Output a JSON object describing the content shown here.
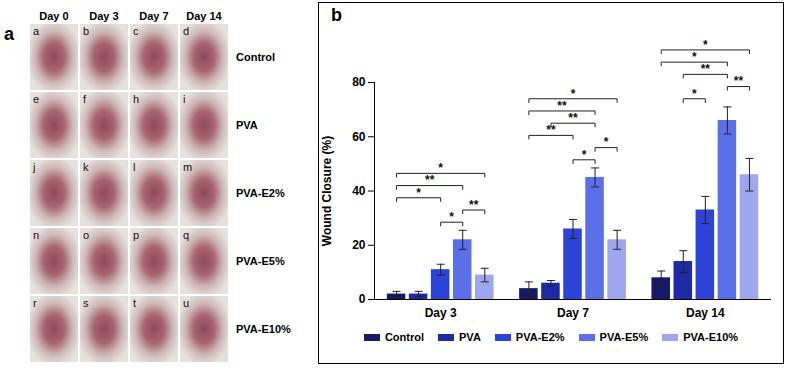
{
  "panel_a": {
    "label": "a",
    "columns": [
      "Day 0",
      "Day 3",
      "Day 7",
      "Day 14"
    ],
    "rows": [
      {
        "name": "Control",
        "cells": [
          "a",
          "b",
          "c",
          "d"
        ]
      },
      {
        "name": "PVA",
        "cells": [
          "e",
          "f",
          "h",
          "i"
        ]
      },
      {
        "name": "PVA-E2%",
        "cells": [
          "j",
          "k",
          "l",
          "m"
        ]
      },
      {
        "name": "PVA-E5%",
        "cells": [
          "n",
          "o",
          "p",
          "q"
        ]
      },
      {
        "name": "PVA-E10%",
        "cells": [
          "r",
          "s",
          "t",
          "u"
        ]
      }
    ]
  },
  "chart_data": {
    "type": "bar",
    "panel_label": "b",
    "y_label": "Wound Closure (%)",
    "categories": [
      "Day 3",
      "Day 7",
      "Day 14"
    ],
    "series": [
      {
        "name": "Control",
        "color": "#141a66",
        "values": [
          2,
          4,
          8
        ],
        "errors": [
          1,
          2.5,
          2.5
        ]
      },
      {
        "name": "PVA",
        "color": "#1c2aa6",
        "values": [
          2,
          6,
          14
        ],
        "errors": [
          1,
          1,
          4
        ]
      },
      {
        "name": "PVA-E2%",
        "color": "#2b43d6",
        "values": [
          11,
          26,
          33
        ],
        "errors": [
          2,
          3.5,
          5
        ]
      },
      {
        "name": "PVA-E5%",
        "color": "#5b6fe8",
        "values": [
          22,
          45,
          66
        ],
        "errors": [
          3.5,
          3.5,
          5
        ]
      },
      {
        "name": "PVA-E10%",
        "color": "#9da6ee",
        "values": [
          9,
          22,
          46
        ],
        "errors": [
          2.5,
          3.5,
          6
        ]
      }
    ],
    "ylim": [
      0,
      80
    ],
    "yticks": [
      0,
      20,
      40,
      60,
      80
    ],
    "grid": false,
    "legend": "bottom",
    "annotations": [
      {
        "category": "Day 3",
        "from": "Control",
        "to": "PVA-E10%",
        "label": "*"
      },
      {
        "category": "Day 3",
        "from": "Control",
        "to": "PVA-E5%",
        "label": "**"
      },
      {
        "category": "Day 3",
        "from": "Control",
        "to": "PVA-E2%",
        "label": "*"
      },
      {
        "category": "Day 3",
        "from": "PVA-E2%",
        "to": "PVA-E5%",
        "label": "*"
      },
      {
        "category": "Day 3",
        "from": "PVA-E5%",
        "to": "PVA-E10%",
        "label": "**"
      },
      {
        "category": "Day 7",
        "from": "Control",
        "to": "PVA-E10%",
        "label": "*"
      },
      {
        "category": "Day 7",
        "from": "Control",
        "to": "PVA-E5%",
        "label": "**"
      },
      {
        "category": "Day 7",
        "from": "Control",
        "to": "PVA-E2%",
        "label": "**"
      },
      {
        "category": "Day 7",
        "from": "PVA",
        "to": "PVA-E5%",
        "label": "**"
      },
      {
        "category": "Day 7",
        "from": "PVA-E2%",
        "to": "PVA-E5%",
        "label": "*"
      },
      {
        "category": "Day 7",
        "from": "PVA-E5%",
        "to": "PVA-E10%",
        "label": "*"
      },
      {
        "category": "Day 14",
        "from": "Control",
        "to": "PVA-E10%",
        "label": "*"
      },
      {
        "category": "Day 14",
        "from": "Control",
        "to": "PVA-E5%",
        "label": "*"
      },
      {
        "category": "Day 14",
        "from": "PVA",
        "to": "PVA-E5%",
        "label": "**"
      },
      {
        "category": "Day 14",
        "from": "PVA",
        "to": "PVA-E2%",
        "label": "*"
      },
      {
        "category": "Day 14",
        "from": "PVA-E5%",
        "to": "PVA-E10%",
        "label": "**"
      }
    ]
  }
}
